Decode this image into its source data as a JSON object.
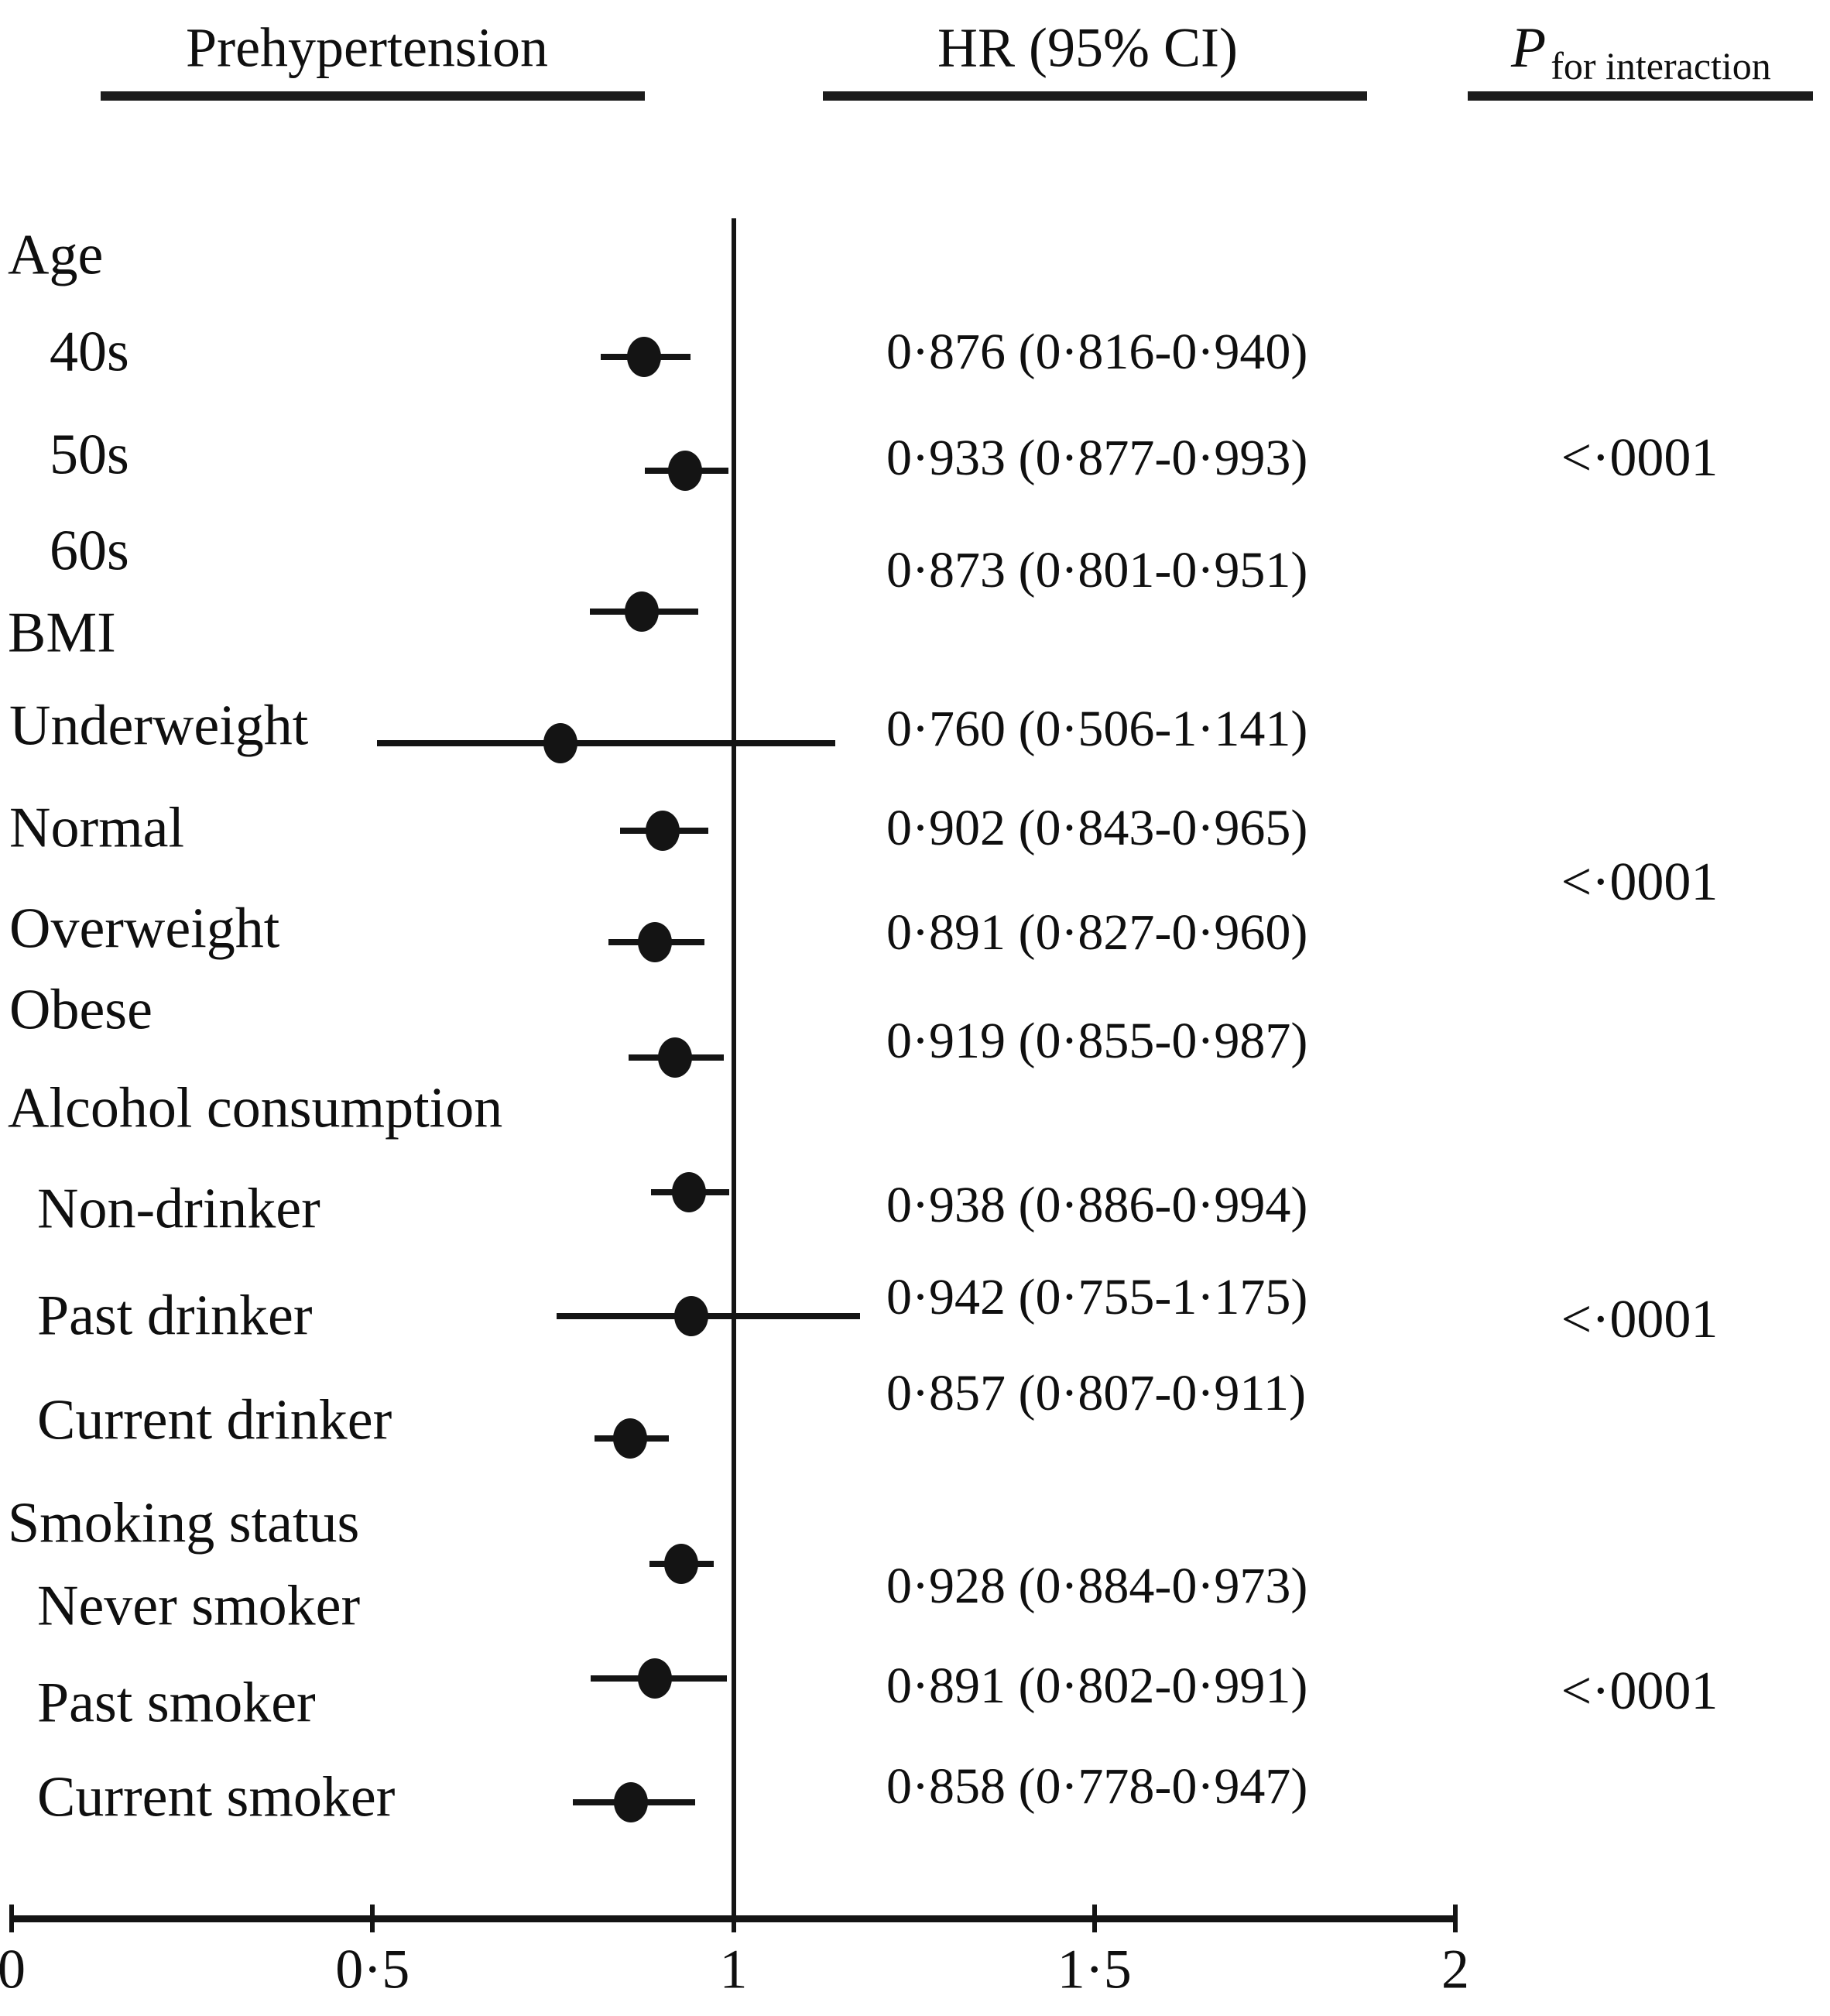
{
  "header": {
    "col_effect": "Prehypertension",
    "col_hr": "HR (95% CI)",
    "p_symbol": "P",
    "p_subscript": "for interaction"
  },
  "colors": {
    "ink": "#141414",
    "background": "#ffffff"
  },
  "chart_data": {
    "type": "forest",
    "title": "Prehypertension",
    "value_column_header": "HR (95% CI)",
    "p_column_header": "P for interaction",
    "x_axis": {
      "min": 0,
      "max": 2,
      "ticks": [
        0,
        0.5,
        1,
        1.5,
        2
      ],
      "tick_labels": [
        "0",
        "0·5",
        "1",
        "1·5",
        "2"
      ],
      "reference_line": 1
    },
    "rows": [
      {
        "kind": "group",
        "label": "Age",
        "p_interaction": "<·0001"
      },
      {
        "kind": "item",
        "label": "40s",
        "hr": 0.876,
        "ci_low": 0.816,
        "ci_high": 0.94,
        "hr_text": "0·876 (0·816-0·940)"
      },
      {
        "kind": "item",
        "label": "50s",
        "hr": 0.933,
        "ci_low": 0.877,
        "ci_high": 0.993,
        "hr_text": "0·933 (0·877-0·993)"
      },
      {
        "kind": "item",
        "label": "60s",
        "hr": 0.873,
        "ci_low": 0.801,
        "ci_high": 0.951,
        "hr_text": "0·873 (0·801-0·951)"
      },
      {
        "kind": "group",
        "label": "BMI",
        "p_interaction": "<·0001"
      },
      {
        "kind": "item",
        "label": "Underweight",
        "hr": 0.76,
        "ci_low": 0.506,
        "ci_high": 1.141,
        "hr_text": "0·760 (0·506-1·141)"
      },
      {
        "kind": "item",
        "label": "Normal",
        "hr": 0.902,
        "ci_low": 0.843,
        "ci_high": 0.965,
        "hr_text": "0·902 (0·843-0·965)"
      },
      {
        "kind": "item",
        "label": "Overweight",
        "hr": 0.891,
        "ci_low": 0.827,
        "ci_high": 0.96,
        "hr_text": "0·891 (0·827-0·960)"
      },
      {
        "kind": "item",
        "label": "Obese",
        "hr": 0.919,
        "ci_low": 0.855,
        "ci_high": 0.987,
        "hr_text": "0·919 (0·855-0·987)"
      },
      {
        "kind": "group",
        "label": "Alcohol consumption",
        "p_interaction": "<·0001"
      },
      {
        "kind": "item",
        "label": "Non-drinker",
        "hr": 0.938,
        "ci_low": 0.886,
        "ci_high": 0.994,
        "hr_text": "0·938 (0·886-0·994)"
      },
      {
        "kind": "item",
        "label": "Past drinker",
        "hr": 0.942,
        "ci_low": 0.755,
        "ci_high": 1.175,
        "hr_text": "0·942 (0·755-1·175)"
      },
      {
        "kind": "item",
        "label": "Current drinker",
        "hr": 0.857,
        "ci_low": 0.807,
        "ci_high": 0.911,
        "hr_text": "0·857 (0·807-0·911)"
      },
      {
        "kind": "group",
        "label": "Smoking status",
        "p_interaction": "<·0001"
      },
      {
        "kind": "item",
        "label": "Never smoker",
        "hr": 0.928,
        "ci_low": 0.884,
        "ci_high": 0.973,
        "hr_text": "0·928 (0·884-0·973)"
      },
      {
        "kind": "item",
        "label": "Past smoker",
        "hr": 0.891,
        "ci_low": 0.802,
        "ci_high": 0.991,
        "hr_text": "0·891 (0·802-0·991)"
      },
      {
        "kind": "item",
        "label": "Current smoker",
        "hr": 0.858,
        "ci_low": 0.778,
        "ci_high": 0.947,
        "hr_text": "0·858 (0·778-0·947)"
      }
    ]
  }
}
